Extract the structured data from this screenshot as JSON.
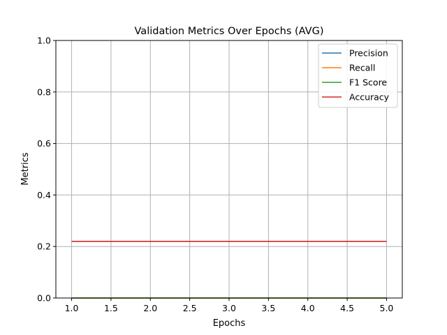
{
  "chart_data": {
    "type": "line",
    "title": "Validation Metrics Over Epochs (AVG)",
    "xlabel": "Epochs",
    "ylabel": "Metrics",
    "xlim": [
      0.8,
      5.2
    ],
    "ylim": [
      0.0,
      1.0
    ],
    "xticks": [
      "1.0",
      "1.5",
      "2.0",
      "2.5",
      "3.0",
      "3.5",
      "4.0",
      "4.5",
      "5.0"
    ],
    "yticks": [
      "0.0",
      "0.2",
      "0.4",
      "0.6",
      "0.8",
      "1.0"
    ],
    "grid": true,
    "legend_position": "top-right",
    "x": [
      1,
      2,
      3,
      4,
      5
    ],
    "series": [
      {
        "name": "Precision",
        "color": "#1f77b4",
        "values": [
          0.0,
          0.0,
          0.0,
          0.0,
          0.0
        ]
      },
      {
        "name": "Recall",
        "color": "#ff7f0e",
        "values": [
          0.0,
          0.0,
          0.0,
          0.0,
          0.0
        ]
      },
      {
        "name": "F1 Score",
        "color": "#2ca02c",
        "values": [
          0.0,
          0.0,
          0.0,
          0.0,
          0.0
        ]
      },
      {
        "name": "Accuracy",
        "color": "#d62728",
        "values": [
          0.22,
          0.22,
          0.22,
          0.22,
          0.22
        ]
      }
    ]
  }
}
